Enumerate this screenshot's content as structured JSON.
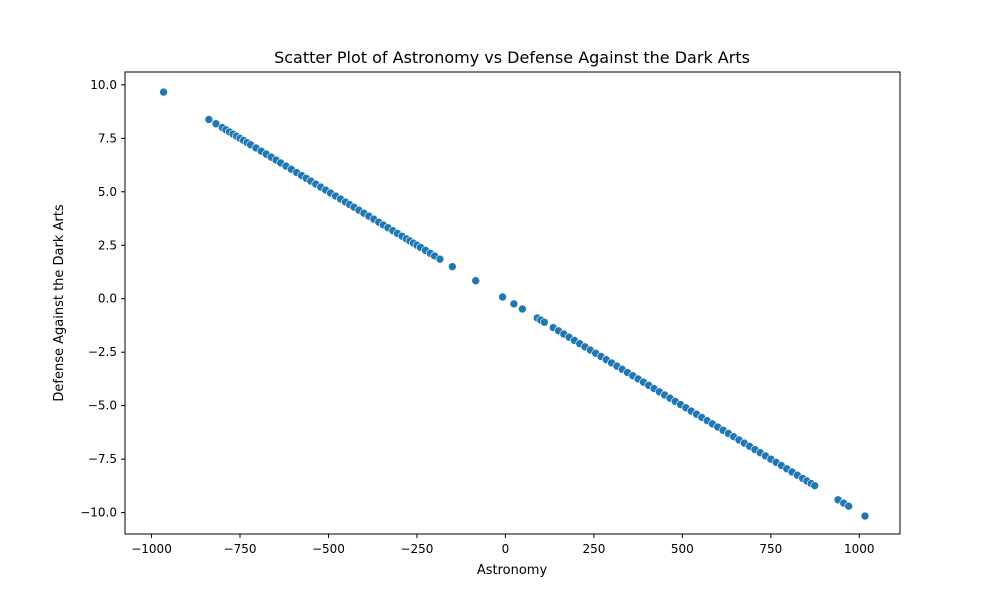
{
  "chart_data": {
    "type": "scatter",
    "title": "Scatter Plot of Astronomy vs Defense Against the Dark Arts",
    "xlabel": "Astronomy",
    "ylabel": "Defense Against the Dark Arts",
    "xlim": [
      -1075,
      1115
    ],
    "ylim": [
      -11.0,
      10.6
    ],
    "xticks": [
      -1000,
      -750,
      -500,
      -250,
      0,
      250,
      500,
      750,
      1000
    ],
    "xtick_labels": [
      "−1000",
      "−750",
      "−500",
      "−250",
      "0",
      "250",
      "500",
      "750",
      "1000"
    ],
    "yticks": [
      -10.0,
      -7.5,
      -5.0,
      -2.5,
      0.0,
      2.5,
      5.0,
      7.5,
      10.0
    ],
    "ytick_labels": [
      "−10.0",
      "−7.5",
      "−5.0",
      "−2.5",
      "0.0",
      "2.5",
      "5.0",
      "7.5",
      "10.0"
    ],
    "grid": false,
    "marker_color": "#1f77b4",
    "marker_edge_color": "#ffffff",
    "relationship": {
      "slope": -0.01,
      "intercept": 0.0
    },
    "points": [
      [
        -966,
        9.66
      ],
      [
        -838,
        8.38
      ],
      [
        -818,
        8.18
      ],
      [
        -800,
        8.0
      ],
      [
        -790,
        7.9
      ],
      [
        -780,
        7.8
      ],
      [
        -770,
        7.7
      ],
      [
        -760,
        7.6
      ],
      [
        -750,
        7.5
      ],
      [
        -740,
        7.4
      ],
      [
        -730,
        7.3
      ],
      [
        -720,
        7.2
      ],
      [
        -705,
        7.05
      ],
      [
        -690,
        6.9
      ],
      [
        -676,
        6.76
      ],
      [
        -662,
        6.62
      ],
      [
        -648,
        6.48
      ],
      [
        -635,
        6.35
      ],
      [
        -620,
        6.2
      ],
      [
        -605,
        6.05
      ],
      [
        -590,
        5.9
      ],
      [
        -576,
        5.76
      ],
      [
        -563,
        5.63
      ],
      [
        -550,
        5.5
      ],
      [
        -536,
        5.36
      ],
      [
        -522,
        5.22
      ],
      [
        -508,
        5.08
      ],
      [
        -494,
        4.94
      ],
      [
        -480,
        4.8
      ],
      [
        -466,
        4.66
      ],
      [
        -452,
        4.52
      ],
      [
        -440,
        4.4
      ],
      [
        -428,
        4.28
      ],
      [
        -414,
        4.14
      ],
      [
        -400,
        4.0
      ],
      [
        -386,
        3.86
      ],
      [
        -372,
        3.72
      ],
      [
        -358,
        3.58
      ],
      [
        -345,
        3.45
      ],
      [
        -332,
        3.32
      ],
      [
        -318,
        3.18
      ],
      [
        -305,
        3.05
      ],
      [
        -292,
        2.92
      ],
      [
        -280,
        2.8
      ],
      [
        -270,
        2.7
      ],
      [
        -260,
        2.6
      ],
      [
        -250,
        2.5
      ],
      [
        -240,
        2.4
      ],
      [
        -226,
        2.26
      ],
      [
        -212,
        2.12
      ],
      [
        -200,
        2.0
      ],
      [
        -185,
        1.85
      ],
      [
        -150,
        1.5
      ],
      [
        -84,
        0.84
      ],
      [
        -8,
        0.08
      ],
      [
        24,
        -0.24
      ],
      [
        48,
        -0.48
      ],
      [
        90,
        -0.9
      ],
      [
        100,
        -1.0
      ],
      [
        110,
        -1.1
      ],
      [
        135,
        -1.35
      ],
      [
        150,
        -1.5
      ],
      [
        165,
        -1.65
      ],
      [
        180,
        -1.8
      ],
      [
        195,
        -1.95
      ],
      [
        210,
        -2.1
      ],
      [
        225,
        -2.25
      ],
      [
        240,
        -2.4
      ],
      [
        255,
        -2.55
      ],
      [
        270,
        -2.7
      ],
      [
        285,
        -2.85
      ],
      [
        300,
        -3.0
      ],
      [
        315,
        -3.15
      ],
      [
        330,
        -3.3
      ],
      [
        345,
        -3.45
      ],
      [
        360,
        -3.6
      ],
      [
        375,
        -3.75
      ],
      [
        390,
        -3.9
      ],
      [
        405,
        -4.05
      ],
      [
        420,
        -4.2
      ],
      [
        435,
        -4.35
      ],
      [
        450,
        -4.5
      ],
      [
        465,
        -4.65
      ],
      [
        480,
        -4.8
      ],
      [
        495,
        -4.95
      ],
      [
        510,
        -5.1
      ],
      [
        525,
        -5.25
      ],
      [
        540,
        -5.4
      ],
      [
        555,
        -5.55
      ],
      [
        570,
        -5.7
      ],
      [
        585,
        -5.85
      ],
      [
        600,
        -6.0
      ],
      [
        615,
        -6.15
      ],
      [
        630,
        -6.3
      ],
      [
        645,
        -6.45
      ],
      [
        660,
        -6.6
      ],
      [
        675,
        -6.75
      ],
      [
        690,
        -6.9
      ],
      [
        705,
        -7.05
      ],
      [
        720,
        -7.2
      ],
      [
        735,
        -7.35
      ],
      [
        750,
        -7.5
      ],
      [
        765,
        -7.65
      ],
      [
        780,
        -7.8
      ],
      [
        795,
        -7.95
      ],
      [
        810,
        -8.1
      ],
      [
        825,
        -8.25
      ],
      [
        840,
        -8.4
      ],
      [
        852,
        -8.52
      ],
      [
        864,
        -8.64
      ],
      [
        874,
        -8.74
      ],
      [
        940,
        -9.4
      ],
      [
        956,
        -9.56
      ],
      [
        970,
        -9.7
      ],
      [
        1016,
        -10.16
      ]
    ]
  }
}
